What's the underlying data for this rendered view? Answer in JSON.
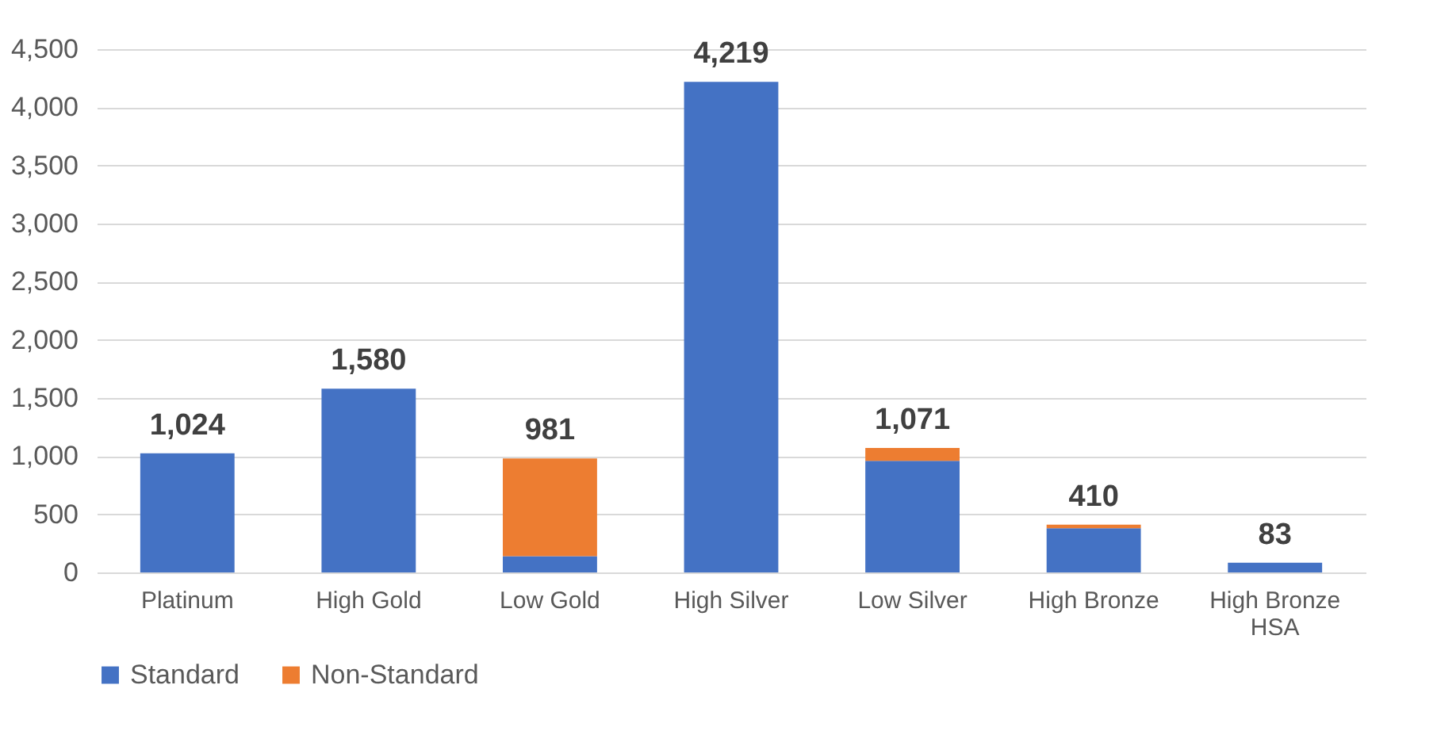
{
  "chart_data": {
    "type": "bar",
    "stacked": true,
    "categories": [
      "Platinum",
      "High Gold",
      "Low Gold",
      "High Silver",
      "Low Silver",
      "High Bronze",
      "High Bronze HSA"
    ],
    "series": [
      {
        "name": "Standard",
        "color": "#4472c4",
        "values": [
          1024,
          1580,
          140,
          4219,
          960,
          380,
          83
        ]
      },
      {
        "name": "Non-Standard",
        "color": "#ed7d31",
        "values": [
          null,
          null,
          840,
          null,
          110,
          30,
          null
        ]
      }
    ],
    "totals": [
      "1,024",
      "1,580",
      "981",
      "4,219",
      "1,071",
      "410",
      "83"
    ],
    "ylim": [
      0,
      4500
    ],
    "yticks": [
      0,
      500,
      {
        "value": 1000,
        "label": "1,000"
      },
      {
        "value": 1500,
        "label": "1,500"
      },
      {
        "value": 2000,
        "label": "2,000"
      },
      {
        "value": 2500,
        "label": "2,500"
      },
      {
        "value": 3000,
        "label": "3,000"
      },
      {
        "value": 3500,
        "label": "3,500"
      },
      {
        "value": 4000,
        "label": "4,000"
      },
      {
        "value": 4500,
        "label": "4,500"
      }
    ],
    "grid": "y",
    "legend": "bottom"
  }
}
